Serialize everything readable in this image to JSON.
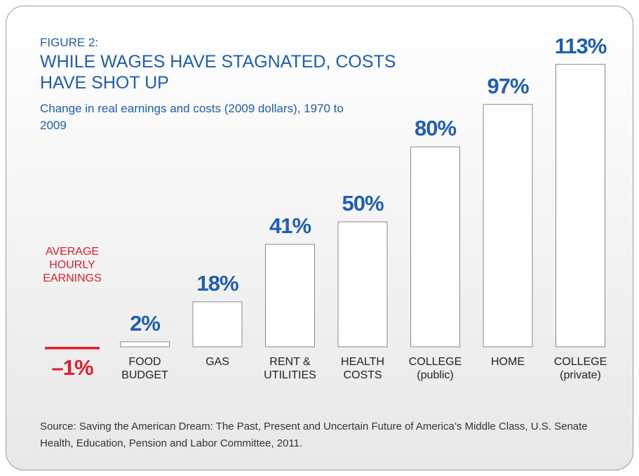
{
  "chart_data": {
    "type": "bar",
    "label": "FIGURE 2:",
    "title": "WHILE WAGES HAVE STAGNATED, COSTS HAVE SHOT UP",
    "subtitle": "Change in real earnings and costs (2009 dollars), 1970 to 2009",
    "categories": [
      "AVERAGE HOURLY EARNINGS",
      "FOOD BUDGET",
      "GAS",
      "RENT & UTILITIES",
      "HEALTH COSTS",
      "COLLEGE (public)",
      "HOME",
      "COLLEGE (private)"
    ],
    "values": [
      -1,
      2,
      18,
      41,
      50,
      80,
      97,
      113
    ],
    "value_labels": [
      "–1%",
      "2%",
      "18%",
      "41%",
      "50%",
      "80%",
      "97%",
      "113%"
    ],
    "colors": [
      "#e0202e",
      "#1f5fae",
      "#1f5fae",
      "#1f5fae",
      "#1f5fae",
      "#1f5fae",
      "#1f5fae",
      "#1f5fae"
    ],
    "bar_color": "#ffffff",
    "source": "Source: Saving the American Dream: The Past, Present and Uncertain Future of America’s Middle Class, U.S. Senate Health, Education, Pension and Labor Committee, 2011."
  }
}
